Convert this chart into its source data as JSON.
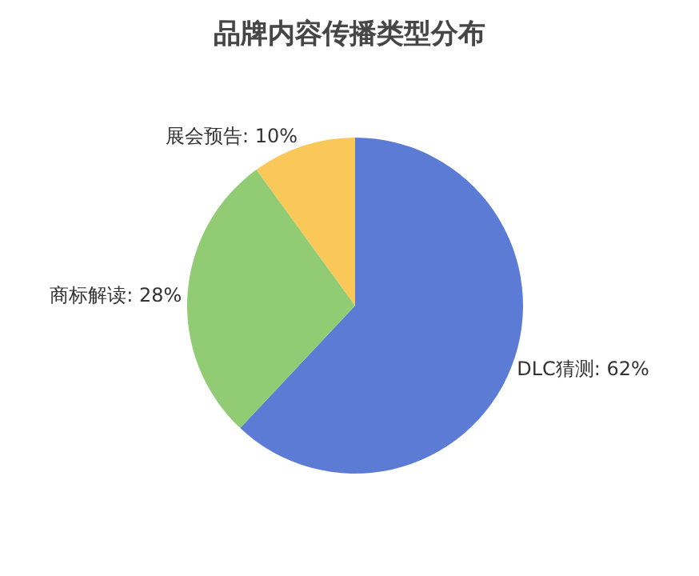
{
  "chart_data": {
    "type": "pie",
    "title": "品牌内容传播类型分布",
    "categories": [
      "DLC猜测",
      "商标解读",
      "展会预告"
    ],
    "values": [
      62,
      28,
      10
    ],
    "colors": [
      "#5b7bd5",
      "#91cc75",
      "#fac858"
    ],
    "value_labels": [
      "62%",
      "28%",
      "10%"
    ],
    "legend": false
  }
}
